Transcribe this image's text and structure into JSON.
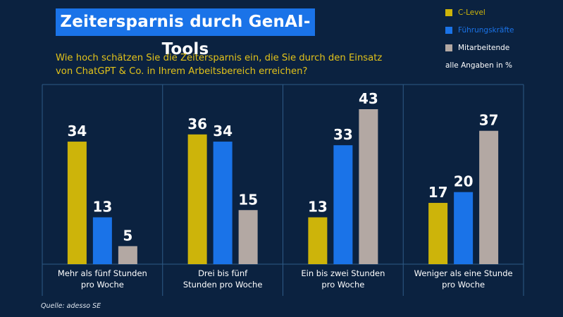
{
  "title": "Zeitersparnis durch GenAI-Tools",
  "subtitle": "Wie hoch schätzen Sie die Zeitersparnis ein, die Sie durch den Einsatz von ChatGPT & Co. in Ihrem Arbeitsbereich erreichen?",
  "unit_note": "alle Angaben in %",
  "source": "Quelle: adesso SE",
  "colors": {
    "background": "#0b2240",
    "title_bg": "#1a73e8",
    "subtitle": "#e2c21a",
    "grid": "#2e5a86"
  },
  "chart_data": {
    "type": "bar",
    "title": "Zeitersparnis durch GenAI-Tools",
    "categories": [
      "Mehr als fünf Stunden pro Woche",
      "Drei bis fünf Stunden pro Woche",
      "Ein bis zwei Stunden pro Woche",
      "Weniger als eine Stunde pro Woche"
    ],
    "category_lines": [
      [
        "Mehr als fünf Stunden",
        "pro Woche"
      ],
      [
        "Drei bis fünf",
        "Stunden pro Woche"
      ],
      [
        "Ein bis zwei Stunden",
        "pro Woche"
      ],
      [
        "Weniger als eine Stunde",
        "pro Woche"
      ]
    ],
    "series": [
      {
        "name": "C-Level",
        "color": "#cdb40a",
        "values": [
          34,
          36,
          13,
          17
        ]
      },
      {
        "name": "Führungskräfte",
        "color": "#1a73e8",
        "values": [
          13,
          34,
          33,
          20
        ]
      },
      {
        "name": "Mitarbeitende",
        "color": "#b3a8a3",
        "values": [
          5,
          15,
          43,
          37
        ]
      }
    ],
    "xlabel": "",
    "ylabel": "",
    "ylim": [
      0,
      50
    ],
    "grid": false,
    "legend_position": "top-right",
    "data_labels": true
  }
}
